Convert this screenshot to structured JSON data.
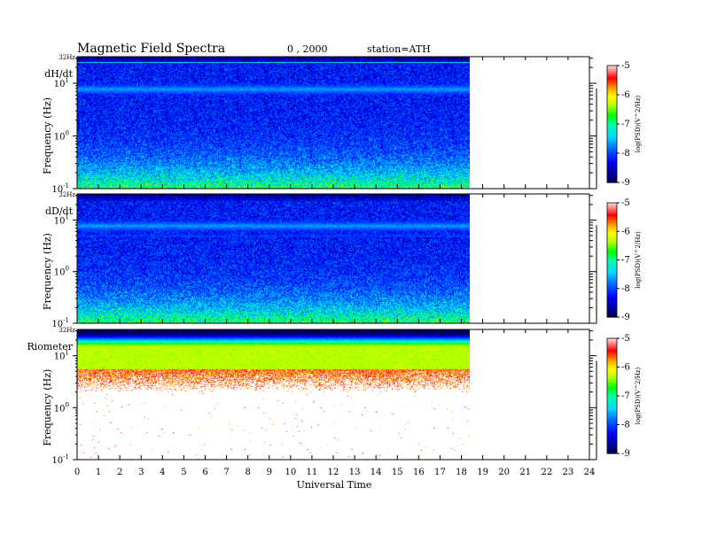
{
  "header": {
    "title": "Magnetic  Field  Spectra",
    "date": "0  , 2000",
    "station": "station=ATH"
  },
  "chart_data": [
    {
      "type": "heatmap",
      "panel_label": "dH/dt",
      "top_label": "32Hz",
      "ylabel": "Frequency  (Hz)",
      "ytick_labels": [
        "10^1",
        "10^0",
        "10^-1"
      ],
      "xlim": [
        0,
        24
      ],
      "data_end_hour": 18.4,
      "ylim_hz": [
        0.1,
        32
      ],
      "colorbar": {
        "label": "log(PSD)(V^2/Hz)",
        "range": [
          -9,
          -5
        ],
        "ticks": [
          "-5",
          "-6",
          "-7",
          "-8",
          "-9"
        ]
      },
      "features": {
        "background_level": -8.2,
        "low_freq_level": -7.3,
        "band_hz": [
          7.8
        ],
        "band_level": -7.6,
        "line_hz": [
          1.0,
          25
        ]
      }
    },
    {
      "type": "heatmap",
      "panel_label": "dD/dt",
      "top_label": "32Hz",
      "ylabel": "Frequency  (Hz)",
      "ytick_labels": [
        "10^1",
        "10^0",
        "10^-1"
      ],
      "xlim": [
        0,
        24
      ],
      "data_end_hour": 18.4,
      "ylim_hz": [
        0.1,
        32
      ],
      "colorbar": {
        "label": "log(PSD)(V^2/Hz)",
        "range": [
          -9,
          -5
        ],
        "ticks": [
          "-5",
          "-6",
          "-7",
          "-8",
          "-9"
        ]
      },
      "features": {
        "background_level": -8.2,
        "low_freq_level": -7.3,
        "band_hz": [
          7.8,
          5.0
        ],
        "band_level": -7.6,
        "line_hz": []
      }
    },
    {
      "type": "heatmap",
      "panel_label": "Riometer",
      "top_label": "32Hz",
      "ylabel": "Frequency  (Hz)",
      "ytick_labels": [
        "10^1",
        "10^0",
        "10^-1"
      ],
      "xlim": [
        0,
        24
      ],
      "data_end_hour": 18.4,
      "ylim_hz": [
        0.1,
        32
      ],
      "colorbar": {
        "label": "log(PSD)(V^2/Hz)",
        "range": [
          -9,
          -5
        ],
        "ticks": [
          "-5",
          "-6",
          "-7",
          "-8",
          "-9"
        ]
      },
      "features": {
        "top_level": -8.8,
        "peak_level": -6.3,
        "fade_to_hz": 2,
        "sparse_level": -6.0
      }
    }
  ],
  "xaxis": {
    "label": "Universal Time",
    "ticks": [
      "0",
      "1",
      "2",
      "3",
      "4",
      "5",
      "6",
      "7",
      "8",
      "9",
      "10",
      "11",
      "12",
      "13",
      "14",
      "15",
      "16",
      "17",
      "18",
      "19",
      "20",
      "21",
      "22",
      "23",
      "24"
    ]
  }
}
